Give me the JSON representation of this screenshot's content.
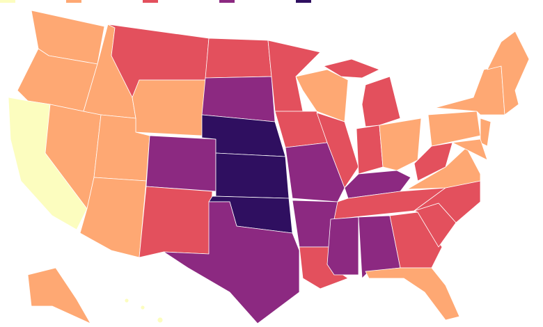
{
  "map": {
    "palette": [
      "#fcfdbf",
      "#fea873",
      "#e3505d",
      "#8c2981",
      "#2f0f60"
    ]
  }
}
